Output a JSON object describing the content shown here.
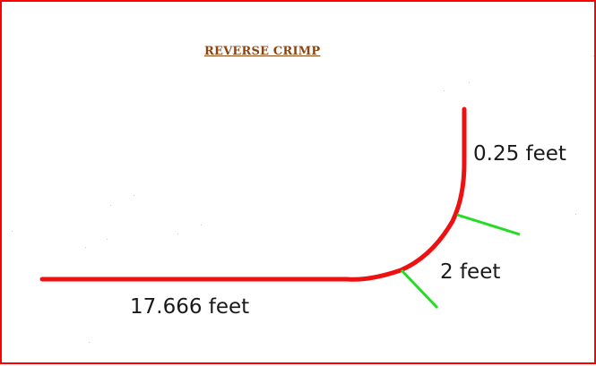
{
  "title": "REVERSE CRIMP",
  "labels": {
    "straight_length": "17.666 feet",
    "arc_length": "2 feet",
    "vertical_length": "0.25 feet"
  },
  "colors": {
    "frame": "#ff0000",
    "pipe": "#ee1111",
    "arc_markers": "#22dd22",
    "title": "#8b4513",
    "text": "#1a1a1a"
  }
}
